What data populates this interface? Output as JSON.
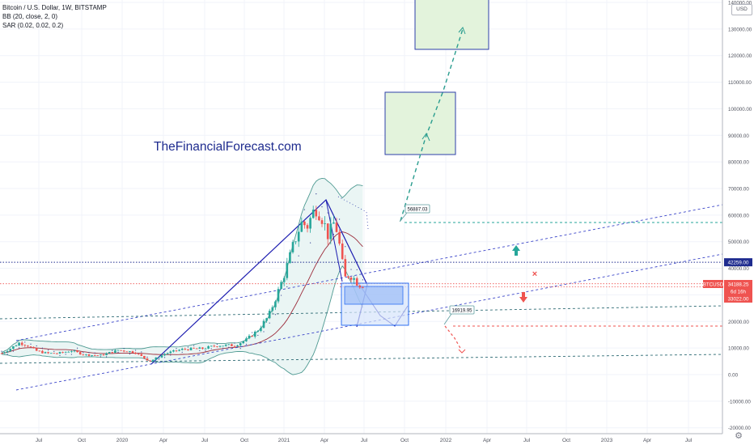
{
  "header": {
    "symbol_line": "Bitcoin / U.S. Dollar, 1W, BITSTAMP",
    "indicator_bb": "BB (20, close, 2, 0)",
    "indicator_sar": "SAR (0.02, 0.02, 0.2)"
  },
  "watermark": "TheFinancialForecast.com",
  "currency_button": "USD",
  "settings_icon": "gear-icon",
  "colors": {
    "up": "#26a69a",
    "down": "#ef5350",
    "bb_fill": "#eaf5f4",
    "bb_band": "#4f9a92",
    "bb_basis": "#9c2b3a",
    "trend_blue": "#1c1cb0",
    "box_fill": "#e3f3dc",
    "box_border": "#2e3fa9",
    "price_label": "#ef5350",
    "level_label": "#131722"
  },
  "chart_data": {
    "type": "candlestick",
    "symbol": "BTCUSD",
    "interval": "1W",
    "x_ticks": [
      "Jul",
      "Oct",
      "2020",
      "Apr",
      "Jul",
      "Oct",
      "2021",
      "Apr",
      "Jul",
      "Oct",
      "2022",
      "Apr",
      "Jul",
      "Oct",
      "2023",
      "Apr",
      "Jul"
    ],
    "y_ticks": [
      "140000.00",
      "130000.00",
      "120000.00",
      "110000.00",
      "100000.00",
      "90000.00",
      "80000.00",
      "70000.00",
      "60000.00",
      "50000.00",
      "40000.00",
      "30000.00",
      "20000.00",
      "10000.00",
      "0.00",
      "-10000.00",
      "-20000.00"
    ],
    "ylim": [
      -21000,
      141000
    ],
    "price_labels": [
      {
        "text": "42259.00",
        "value": 42259,
        "style": "navy"
      },
      {
        "text": "BTCUSD",
        "value": 34188.25,
        "style": "red-tag"
      },
      {
        "text": "34188.25",
        "value": 34188.25,
        "style": "red"
      },
      {
        "text": "6d 16h",
        "value": 31700,
        "style": "red"
      },
      {
        "text": "33022.00",
        "value": 33022,
        "style": "red"
      }
    ],
    "callouts": [
      {
        "text": "56887.03",
        "value": 56887.03
      },
      {
        "text": "16919.95",
        "value": 16919.95
      }
    ],
    "horizontal_levels": [
      42259,
      33022,
      56887.03,
      17500
    ]
  }
}
